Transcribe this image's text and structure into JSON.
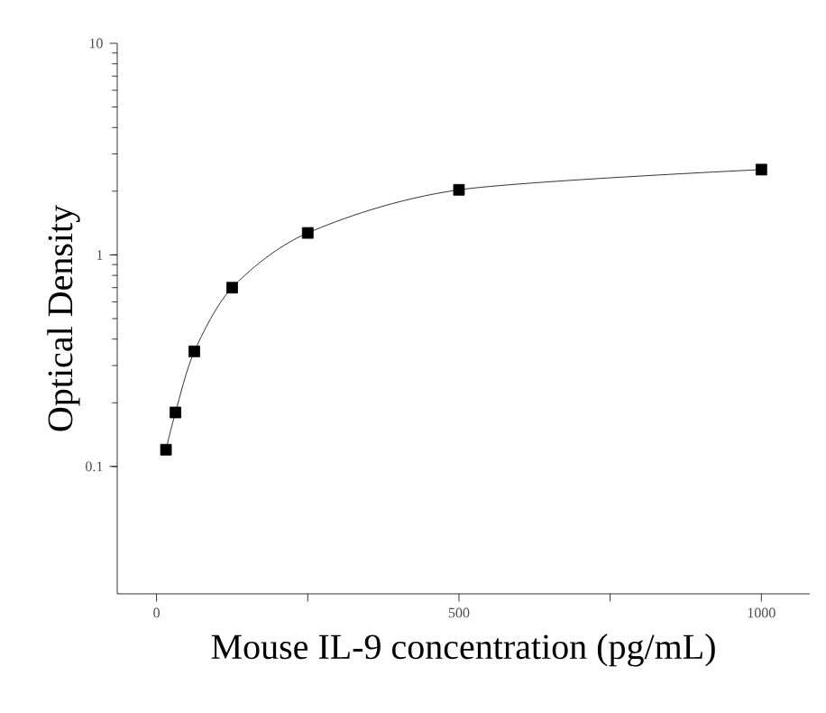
{
  "chart_data": {
    "type": "line",
    "xlabel": "Mouse IL-9 concentration (pg/mL)",
    "ylabel": "Optical Density",
    "log": "y",
    "x": [
      15.6,
      31.25,
      62.5,
      125,
      250,
      500,
      1000
    ],
    "series": [
      {
        "color": "#000000",
        "values": [
          0.12,
          0.18,
          0.35,
          0.7,
          1.27,
          2.03,
          2.53
        ]
      }
    ],
    "marker": "square",
    "line_style": "solid",
    "xlim": [
      -65,
      1080
    ],
    "ylim": [
      0.025,
      10
    ],
    "xticks": [
      0,
      {
        "value": 250,
        "label": null
      },
      500,
      {
        "value": 750,
        "label": null
      },
      1000
    ],
    "yticks": [
      0.1,
      1,
      10
    ]
  }
}
